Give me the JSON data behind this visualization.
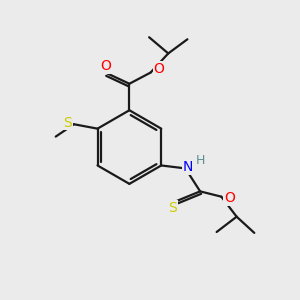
{
  "background_color": "#ebebeb",
  "bond_color": "#1a1a1a",
  "atom_colors": {
    "O": "#ff0000",
    "S_yellow": "#cccc00",
    "S_black": "#1a1a1a",
    "N": "#0000ff",
    "H": "#5a9090"
  },
  "figsize": [
    3.0,
    3.0
  ],
  "dpi": 100
}
